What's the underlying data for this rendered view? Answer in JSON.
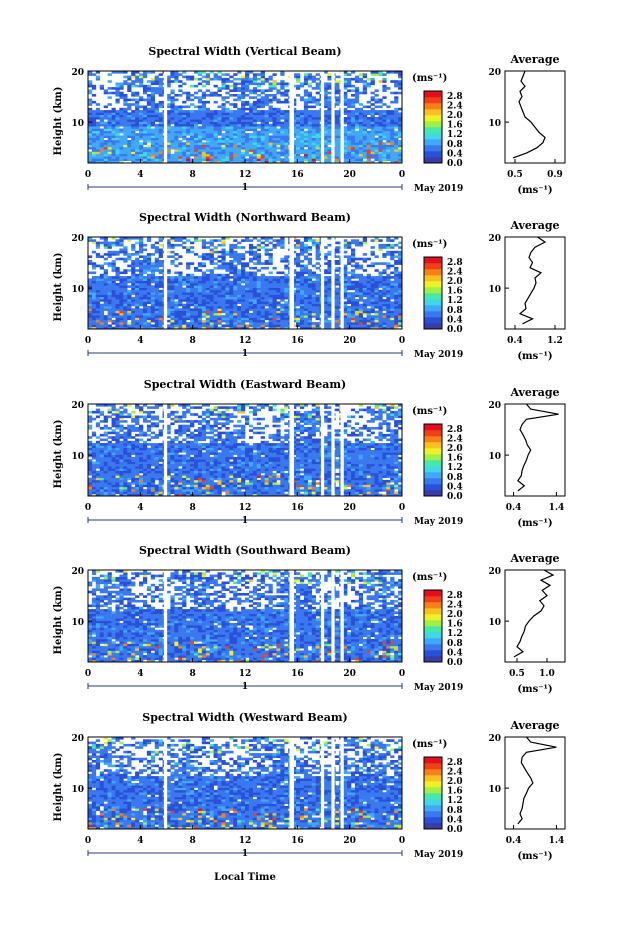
{
  "chart_data": {
    "type": "heatmap",
    "x_axis_label": "Local Time",
    "date_label": "May 2019",
    "day_label": "1",
    "x_ticks": [
      "0",
      "4",
      "8",
      "12",
      "16",
      "20",
      "0"
    ],
    "xlim_hours": [
      0,
      24
    ],
    "y_axis_label": "Height (km)",
    "y_ticks": [
      "10",
      "20"
    ],
    "ylim_km": [
      2,
      20
    ],
    "colorbar": {
      "unit": "(ms⁻¹)",
      "ticks": [
        "0.0",
        "0.4",
        "0.8",
        "1.2",
        "1.6",
        "2.0",
        "2.4",
        "2.8"
      ],
      "range": [
        0.0,
        3.0
      ],
      "colors": [
        "#3a3aa8",
        "#2850d8",
        "#3a78f0",
        "#40a8f8",
        "#40d8e8",
        "#48e8a8",
        "#a0f048",
        "#f0f028",
        "#f8c020",
        "#f88018",
        "#f04018",
        "#e01020"
      ]
    },
    "profile_title": "Average",
    "profile_unit": "(ms⁻¹)",
    "data_gaps_hours": [
      [
        5.8,
        6.05
      ],
      [
        15.4,
        15.75
      ],
      [
        17.8,
        18.05
      ],
      [
        18.6,
        18.85
      ],
      [
        19.3,
        19.55
      ]
    ],
    "panels": [
      {
        "title": "Spectral Width (Vertical Beam)",
        "profile_xticks": [
          "0.5",
          "0.9"
        ],
        "profile_xlim": [
          0.4,
          1.0
        ],
        "profile": [
          [
            3,
            0.48
          ],
          [
            4,
            0.62
          ],
          [
            5,
            0.72
          ],
          [
            6,
            0.78
          ],
          [
            7,
            0.8
          ],
          [
            8,
            0.74
          ],
          [
            9,
            0.7
          ],
          [
            10,
            0.66
          ],
          [
            11,
            0.6
          ],
          [
            12,
            0.58
          ],
          [
            13,
            0.56
          ],
          [
            14,
            0.54
          ],
          [
            15,
            0.57
          ],
          [
            16,
            0.55
          ],
          [
            17,
            0.6
          ],
          [
            18,
            0.56
          ],
          [
            19,
            0.58
          ],
          [
            20,
            0.6
          ]
        ]
      },
      {
        "title": "Spectral Width (Northward Beam)",
        "profile_xticks": [
          "0.4",
          "1.2"
        ],
        "profile_xlim": [
          0.2,
          1.4
        ],
        "profile": [
          [
            3,
            0.55
          ],
          [
            4,
            0.75
          ],
          [
            5,
            0.5
          ],
          [
            6,
            0.62
          ],
          [
            7,
            0.6
          ],
          [
            8,
            0.66
          ],
          [
            9,
            0.72
          ],
          [
            10,
            0.78
          ],
          [
            11,
            0.82
          ],
          [
            12,
            0.8
          ],
          [
            13,
            0.92
          ],
          [
            14,
            0.7
          ],
          [
            15,
            0.75
          ],
          [
            16,
            0.68
          ],
          [
            17,
            0.72
          ],
          [
            18,
            0.8
          ],
          [
            19,
            1.0
          ],
          [
            20,
            0.85
          ]
        ]
      },
      {
        "title": "Spectral Width (Eastward Beam)",
        "profile_xticks": [
          "0.4",
          "1.4"
        ],
        "profile_xlim": [
          0.2,
          1.6
        ],
        "profile": [
          [
            3,
            0.5
          ],
          [
            4,
            0.65
          ],
          [
            5,
            0.5
          ],
          [
            6,
            0.58
          ],
          [
            7,
            0.6
          ],
          [
            8,
            0.64
          ],
          [
            9,
            0.7
          ],
          [
            10,
            0.74
          ],
          [
            11,
            0.8
          ],
          [
            12,
            0.72
          ],
          [
            13,
            0.68
          ],
          [
            14,
            0.62
          ],
          [
            15,
            0.55
          ],
          [
            16,
            0.6
          ],
          [
            17,
            0.7
          ],
          [
            18,
            1.45
          ],
          [
            19,
            0.8
          ],
          [
            20,
            0.7
          ]
        ]
      },
      {
        "title": "Spectral Width (Southward Beam)",
        "profile_xticks": [
          "0.5",
          "1.0"
        ],
        "profile_xlim": [
          0.3,
          1.3
        ],
        "profile": [
          [
            3,
            0.45
          ],
          [
            4,
            0.6
          ],
          [
            5,
            0.5
          ],
          [
            6,
            0.55
          ],
          [
            7,
            0.58
          ],
          [
            8,
            0.62
          ],
          [
            9,
            0.64
          ],
          [
            10,
            0.7
          ],
          [
            11,
            0.78
          ],
          [
            12,
            0.9
          ],
          [
            13,
            0.95
          ],
          [
            14,
            0.88
          ],
          [
            15,
            1.0
          ],
          [
            16,
            0.92
          ],
          [
            17,
            1.05
          ],
          [
            18,
            0.9
          ],
          [
            19,
            1.1
          ],
          [
            20,
            0.95
          ]
        ]
      },
      {
        "title": "Spectral Width (Westward Beam)",
        "profile_xticks": [
          "0.4",
          "1.4"
        ],
        "profile_xlim": [
          0.2,
          1.6
        ],
        "profile": [
          [
            3,
            0.5
          ],
          [
            4,
            0.6
          ],
          [
            5,
            0.55
          ],
          [
            6,
            0.6
          ],
          [
            7,
            0.62
          ],
          [
            8,
            0.64
          ],
          [
            9,
            0.7
          ],
          [
            10,
            0.75
          ],
          [
            11,
            0.85
          ],
          [
            12,
            0.8
          ],
          [
            13,
            0.72
          ],
          [
            14,
            0.65
          ],
          [
            15,
            0.58
          ],
          [
            16,
            0.6
          ],
          [
            17,
            0.7
          ],
          [
            18,
            1.4
          ],
          [
            19,
            0.8
          ],
          [
            20,
            0.7
          ]
        ]
      }
    ]
  }
}
